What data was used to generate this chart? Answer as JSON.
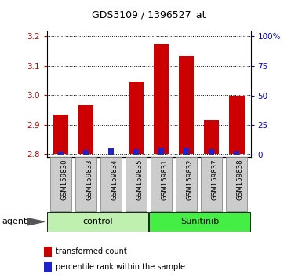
{
  "title": "GDS3109 / 1396527_at",
  "samples": [
    "GSM159830",
    "GSM159833",
    "GSM159834",
    "GSM159835",
    "GSM159831",
    "GSM159832",
    "GSM159837",
    "GSM159838"
  ],
  "red_values": [
    2.935,
    2.965,
    2.802,
    3.045,
    3.175,
    3.135,
    2.915,
    2.997
  ],
  "blue_pct": [
    2.5,
    4.0,
    5.0,
    4.5,
    6.0,
    6.0,
    4.5,
    3.5
  ],
  "bar_bottom": 2.8,
  "ylim_left": [
    2.79,
    3.22
  ],
  "ylim_right": [
    -2,
    105
  ],
  "yticks_left": [
    2.8,
    2.9,
    3.0,
    3.1,
    3.2
  ],
  "yticks_right": [
    0,
    25,
    50,
    75,
    100
  ],
  "ytick_labels_right": [
    "0",
    "25",
    "50",
    "75",
    "100%"
  ],
  "groups": [
    {
      "label": "control",
      "start": 0,
      "end": 4,
      "color": "#c0f0b0"
    },
    {
      "label": "Sunitinib",
      "start": 4,
      "end": 8,
      "color": "#44ee44"
    }
  ],
  "agent_label": "agent",
  "legend_red": "transformed count",
  "legend_blue": "percentile rank within the sample",
  "red_color": "#cc0000",
  "blue_color": "#2222cc",
  "left_tick_color": "#cc0000",
  "right_tick_color": "#0000cc",
  "grid_linestyle": "dotted",
  "xtick_box_color": "#cccccc",
  "xtick_box_edge": "#888888"
}
